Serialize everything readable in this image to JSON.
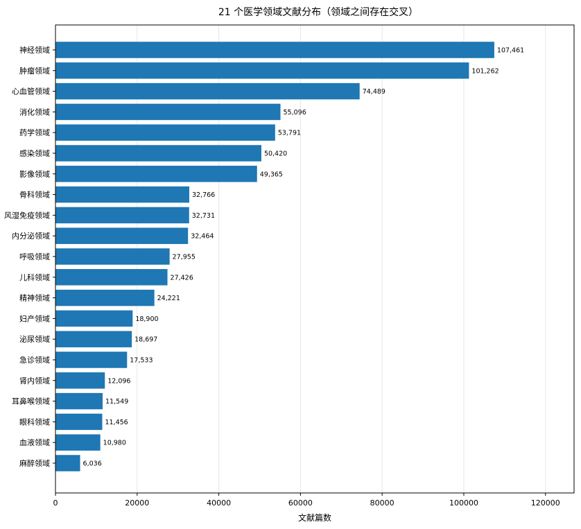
{
  "chart_data": {
    "type": "bar",
    "orientation": "horizontal",
    "title": "21 个医学领域文献分布（领域之间存在交叉）",
    "xlabel": "文献篇数",
    "ylabel": "",
    "xlim": [
      0,
      127000
    ],
    "xticks": [
      0,
      20000,
      40000,
      60000,
      80000,
      100000,
      120000
    ],
    "grid": "vertical",
    "bar_color": "#1f77b4",
    "categories": [
      "神经领域",
      "肿瘤领域",
      "心血管领域",
      "消化领域",
      "药学领域",
      "感染领域",
      "影像领域",
      "骨科领域",
      "风湿免疫领域",
      "内分泌领域",
      "呼吸领域",
      "儿科领域",
      "精神领域",
      "妇产领域",
      "泌尿领域",
      "急诊领域",
      "肾内领域",
      "耳鼻喉领域",
      "眼科领域",
      "血液领域",
      "麻醉领域"
    ],
    "values": [
      107461,
      101262,
      74489,
      55096,
      53791,
      50420,
      49365,
      32766,
      32731,
      32464,
      27955,
      27426,
      24221,
      18900,
      18697,
      17533,
      12096,
      11549,
      11456,
      10980,
      6036
    ],
    "value_labels": [
      "107,461",
      "101,262",
      "74,489",
      "55,096",
      "53,791",
      "50,420",
      "49,365",
      "32,766",
      "32,731",
      "32,464",
      "27,955",
      "27,426",
      "24,221",
      "18,900",
      "18,697",
      "17,533",
      "12,096",
      "11,549",
      "11,456",
      "10,980",
      "6,036"
    ]
  }
}
